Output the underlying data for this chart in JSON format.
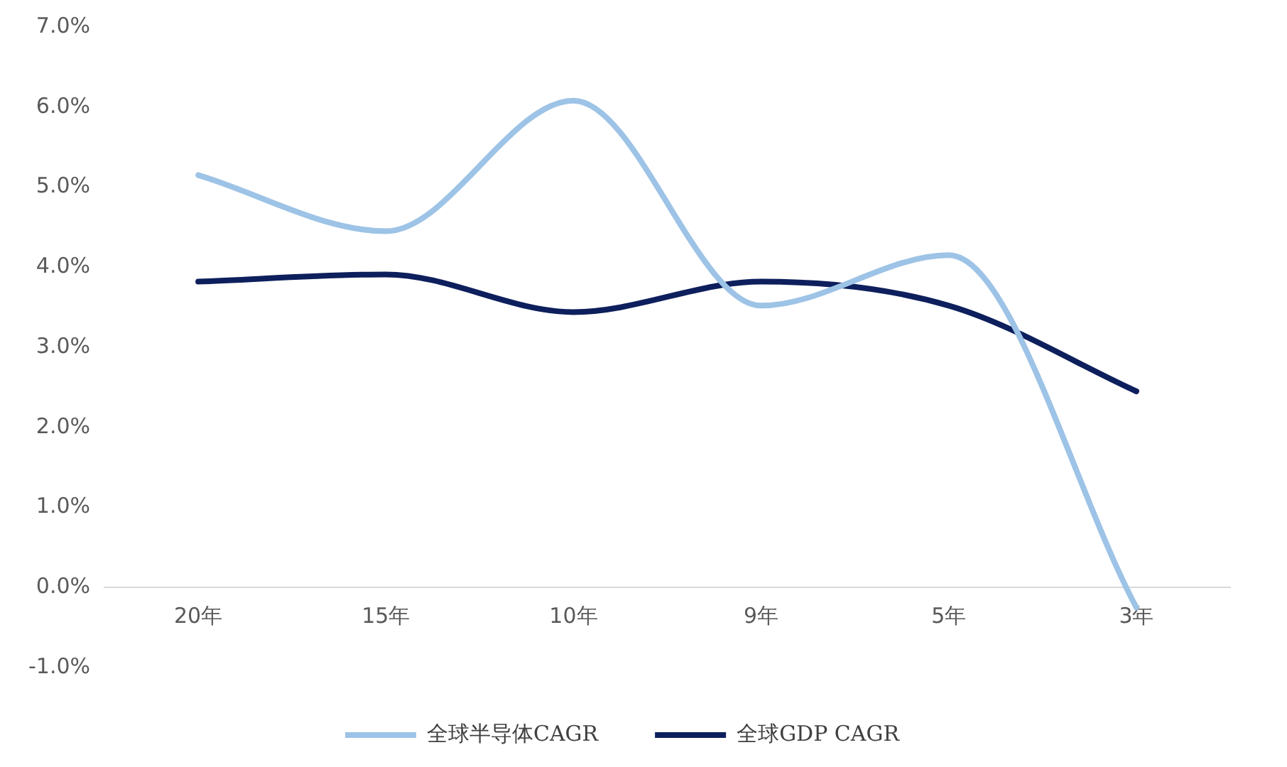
{
  "chart_data": {
    "type": "line",
    "categories": [
      "20年",
      "15年",
      "10年",
      "9年",
      "5年",
      "3年"
    ],
    "series": [
      {
        "name": "全球半导体CAGR",
        "color": "#9dc3e6",
        "values": [
          5.15,
          4.45,
          6.08,
          3.52,
          4.15,
          -0.25
        ]
      },
      {
        "name": "全球GDP CAGR",
        "color": "#0d1f5c",
        "values": [
          3.82,
          3.91,
          3.44,
          3.82,
          3.52,
          2.45
        ]
      }
    ],
    "ylim": [
      -1,
      7
    ],
    "yticks": [
      {
        "value": -1,
        "label": "-1.0%"
      },
      {
        "value": 0,
        "label": "0.0%"
      },
      {
        "value": 1,
        "label": "1.0%"
      },
      {
        "value": 2,
        "label": "2.0%"
      },
      {
        "value": 3,
        "label": "3.0%"
      },
      {
        "value": 4,
        "label": "4.0%"
      },
      {
        "value": 5,
        "label": "5.0%"
      },
      {
        "value": 6,
        "label": "6.0%"
      },
      {
        "value": 7,
        "label": "7.0%"
      }
    ],
    "grid": false,
    "legend": "bottom",
    "marker": "none",
    "line_style": "solid"
  }
}
